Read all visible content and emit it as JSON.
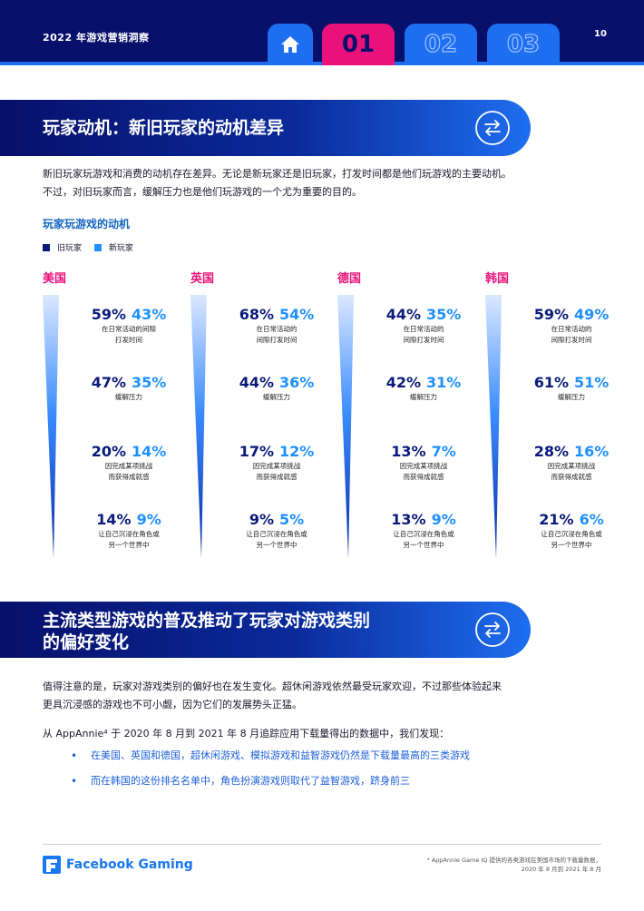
{
  "header": {
    "title": "2022 年游戏营销洞察",
    "page_number": "10",
    "tabs": [
      "01",
      "02",
      "03"
    ]
  },
  "section1": {
    "title": "玩家动机：新旧玩家的动机差异",
    "intro_line1": "新旧玩家玩游戏和消费的动机存在差异。无论是新玩家还是旧玩家，打发时间都是他们玩游戏的主要动机。",
    "intro_line2": "不过，对旧玩家而言，缓解压力也是他们玩游戏的一个尤为重要的目的。",
    "chart_title": "玩家玩游戏的动机",
    "legend_old": "旧玩家",
    "legend_new": "新玩家"
  },
  "countries": [
    {
      "name": "美国",
      "rows": [
        {
          "old": "59%",
          "new": "43%",
          "cap1": "在日常活动的间隙",
          "cap2": "打发时间"
        },
        {
          "old": "47%",
          "new": "35%",
          "cap1": "缓解压力",
          "cap2": ""
        },
        {
          "old": "20%",
          "new": "14%",
          "cap1": "因完成某项挑战",
          "cap2": "而获得成就感"
        },
        {
          "old": "14%",
          "new": "9%",
          "cap1": "让自己沉浸在角色或",
          "cap2": "另一个世界中"
        }
      ]
    },
    {
      "name": "英国",
      "rows": [
        {
          "old": "68%",
          "new": "54%",
          "cap1": "在日常活动的",
          "cap2": "间隙打发时间"
        },
        {
          "old": "44%",
          "new": "36%",
          "cap1": "缓解压力",
          "cap2": ""
        },
        {
          "old": "17%",
          "new": "12%",
          "cap1": "因完成某项挑战",
          "cap2": "而获得成就感"
        },
        {
          "old": "9%",
          "new": "5%",
          "cap1": "让自己沉浸在角色或",
          "cap2": "另一个世界中"
        }
      ]
    },
    {
      "name": "德国",
      "rows": [
        {
          "old": "44%",
          "new": "35%",
          "cap1": "在日常活动的",
          "cap2": "间隙打发时间"
        },
        {
          "old": "42%",
          "new": "31%",
          "cap1": "缓解压力",
          "cap2": ""
        },
        {
          "old": "13%",
          "new": "7%",
          "cap1": "因完成某项挑战",
          "cap2": "而获得成就感"
        },
        {
          "old": "13%",
          "new": "9%",
          "cap1": "让自己沉浸在角色或",
          "cap2": "另一个世界中"
        }
      ]
    },
    {
      "name": "韩国",
      "rows": [
        {
          "old": "59%",
          "new": "49%",
          "cap1": "在日常活动的",
          "cap2": "间隙打发时间"
        },
        {
          "old": "61%",
          "new": "51%",
          "cap1": "缓解压力",
          "cap2": ""
        },
        {
          "old": "28%",
          "new": "16%",
          "cap1": "因完成某项挑战",
          "cap2": "而获得成就感"
        },
        {
          "old": "21%",
          "new": "6%",
          "cap1": "让自己沉浸在角色或",
          "cap2": "另一个世界中"
        }
      ]
    }
  ],
  "section2": {
    "title_line1": "主流类型游戏的普及推动了玩家对游戏类别",
    "title_line2": "的偏好变化",
    "para_line1": "值得注意的是，玩家对游戏类别的偏好也在发生变化。超休闲游戏依然最受玩家欢迎，不过那些体验起来",
    "para_line2": "更具沉浸感的游戏也不可小觑，因为它们的发展势头正猛。",
    "source_line": "从 AppAnnie⁴ 于 2020 年 8 月到 2021 年 8 月追踪应用下载量得出的数据中，我们发现：",
    "bullets": [
      "在美国、英国和德国，超休闲游戏、模拟游戏和益智游戏仍然是下载量最高的三类游戏",
      "而在韩国的这份排名名单中，角色扮演游戏则取代了益智游戏，跻身前三"
    ]
  },
  "footer": {
    "logo_text": "Facebook Gaming",
    "footnote_line1": "⁴ AppAnnie Game IQ 提供的各类游戏在美国市场的下载量数据，",
    "footnote_line2": "2020 年 8 月到 2021 年 8 月"
  },
  "colors": {
    "navy": "#07106b",
    "blue": "#1e6ef0",
    "pink": "#e8127a",
    "old_player": "#0a1a7a",
    "new_player": "#1e90ff"
  }
}
